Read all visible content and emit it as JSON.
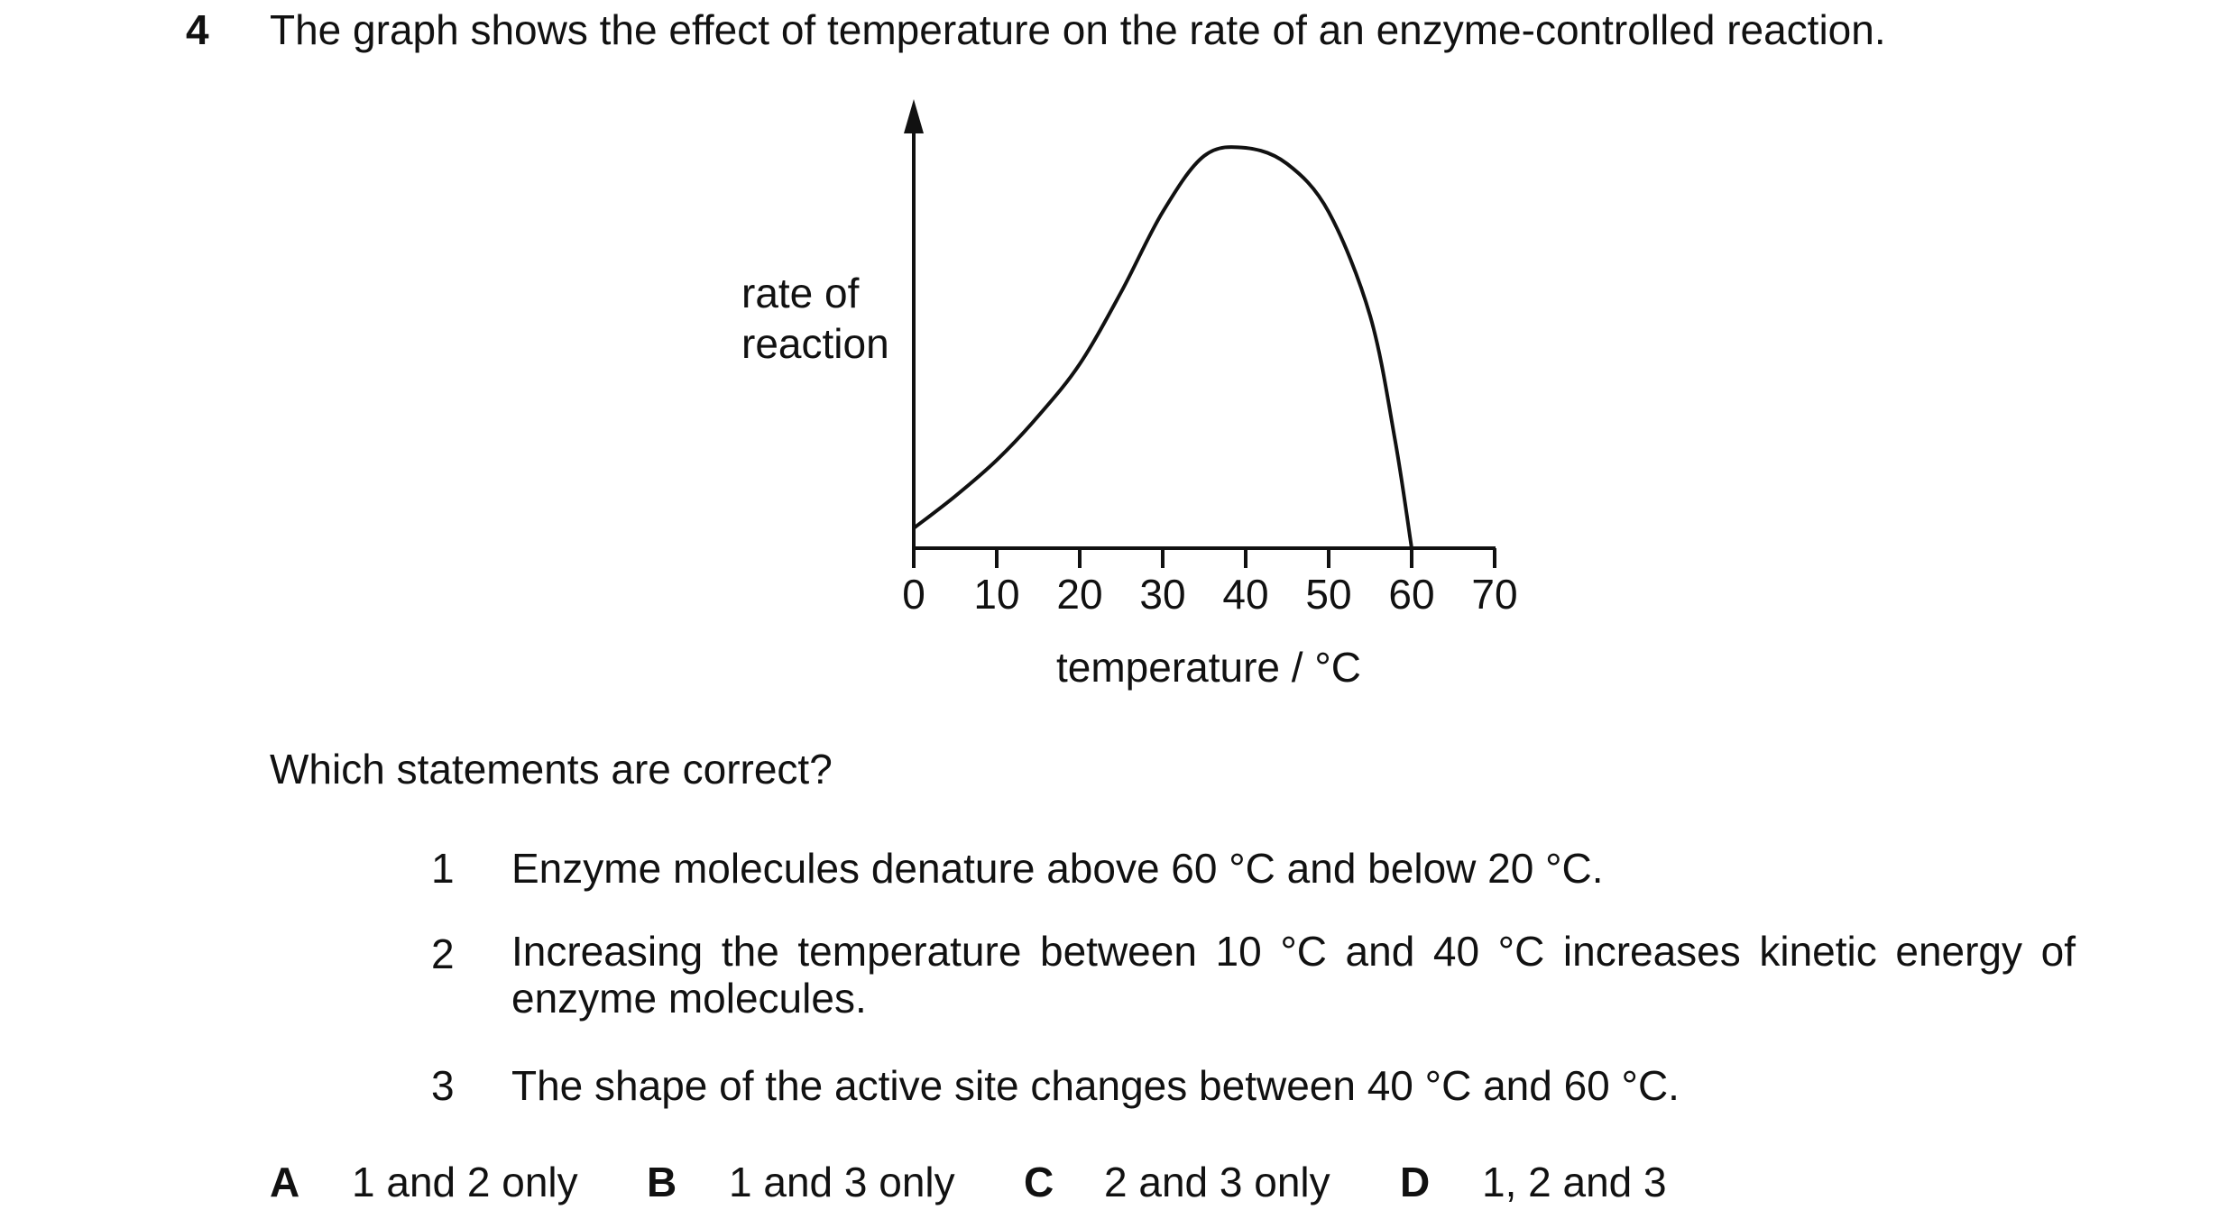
{
  "question": {
    "number": "4",
    "stem": "The graph shows the effect of temperature on the rate of an enzyme-controlled reaction.",
    "prompt": "Which statements are correct?"
  },
  "chart_data": {
    "type": "line",
    "title": "",
    "ylabel_line1": "rate of",
    "ylabel_line2": "reaction",
    "xlabel": "temperature / °C",
    "x_ticks": [
      "0",
      "10",
      "20",
      "30",
      "40",
      "50",
      "60",
      "70"
    ],
    "xlim": [
      0,
      70
    ],
    "ylim": [
      0,
      1
    ],
    "y_tick_labels": false,
    "grid": false,
    "series": [
      {
        "x": [
          0,
          5,
          10,
          15,
          20,
          25,
          30,
          35,
          40,
          45,
          50,
          55,
          58,
          60
        ],
        "y": [
          0.05,
          0.13,
          0.22,
          0.33,
          0.46,
          0.64,
          0.84,
          0.98,
          1.0,
          0.96,
          0.84,
          0.58,
          0.27,
          0.0
        ]
      }
    ]
  },
  "statements": [
    {
      "number": "1",
      "text": "Enzyme molecules denature above 60 °C and below 20 °C."
    },
    {
      "number": "2",
      "text_line1": "Increasing the temperature between 10 °C and 40 °C increases kinetic energy of",
      "text_line2": "enzyme molecules."
    },
    {
      "number": "3",
      "text": "The shape of the active site changes between 40 °C and 60 °C."
    }
  ],
  "options": [
    {
      "letter": "A",
      "text": "1 and 2 only"
    },
    {
      "letter": "B",
      "text": "1 and 3 only"
    },
    {
      "letter": "C",
      "text": "2 and 3 only"
    },
    {
      "letter": "D",
      "text": "1, 2 and 3"
    }
  ]
}
